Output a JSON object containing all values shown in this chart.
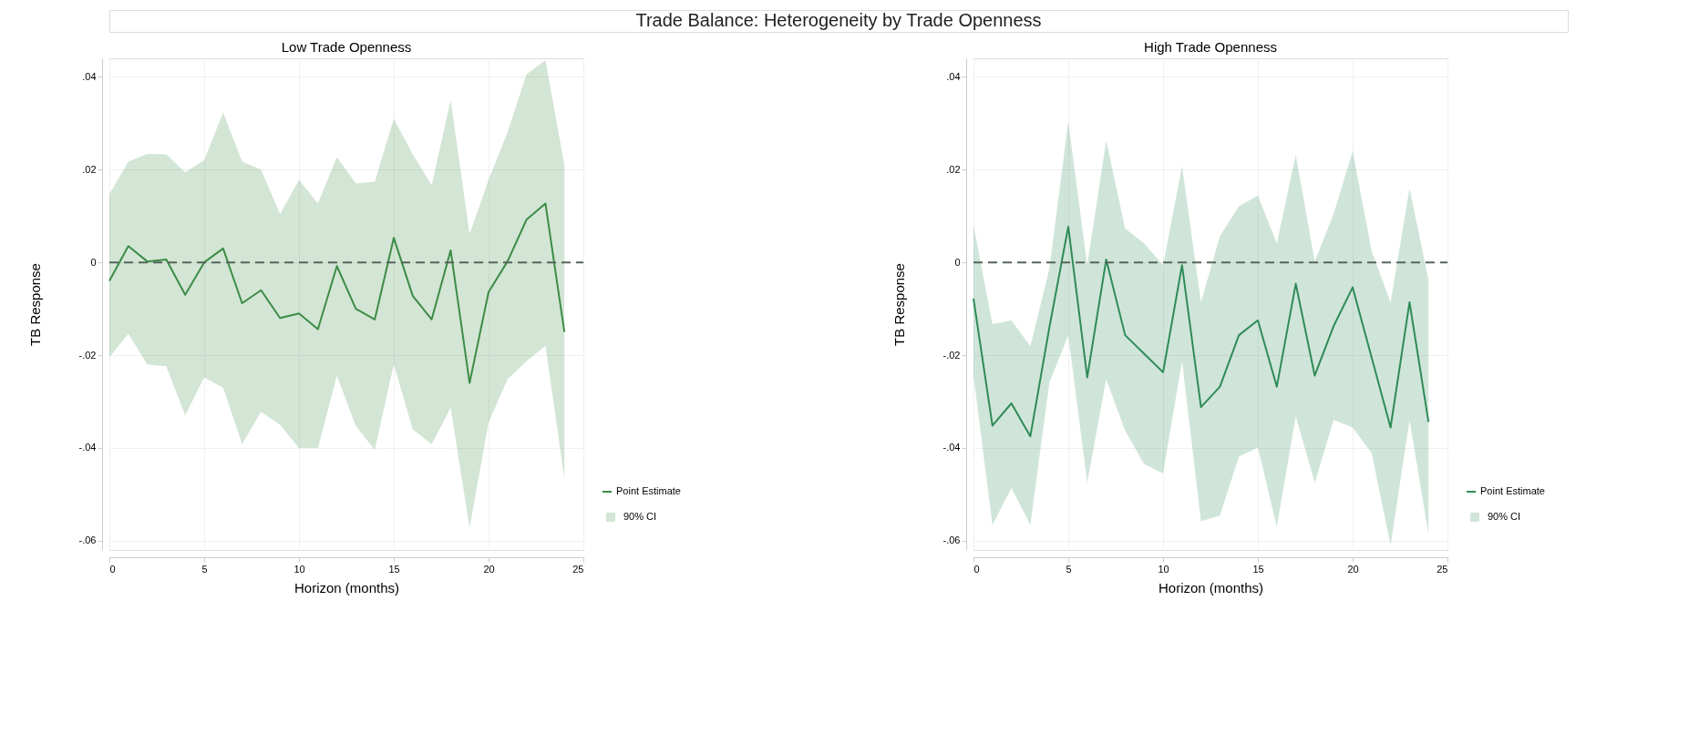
{
  "chart_data": [
    {
      "type": "other",
      "title": "Trade Balance: Heterogeneity by Trade Openness"
    },
    {
      "type": "line",
      "title": "Low Trade Openness",
      "xlabel": "Horizon (months)",
      "ylabel": "TB Response",
      "annotations": [
        "90% CI"
      ],
      "x": [
        0,
        1,
        2,
        3,
        4,
        5,
        6,
        7,
        8,
        9,
        10,
        11,
        12,
        13,
        14,
        15,
        16,
        17,
        18,
        19,
        20,
        21,
        22,
        23,
        24
      ],
      "series": [
        {
          "name": "Point Estimate",
          "color": "#3c8c46",
          "values": [
            -0.004,
            0.0035,
            0.0002,
            0.0006,
            -0.007,
            0,
            0.003,
            -0.0088,
            -0.006,
            -0.012,
            -0.011,
            -0.0144,
            -0.0008,
            -0.01,
            -0.0123,
            0.0053,
            -0.0072,
            -0.0123,
            0.0026,
            -0.026,
            -0.0064,
            0.0002,
            0.0092,
            0.0127,
            -0.015
          ],
          "upper": [
            0.0147,
            0.0217,
            0.0234,
            0.0233,
            0.0194,
            0.022,
            0.0323,
            0.0217,
            0.02,
            0.0104,
            0.0178,
            0.0127,
            0.0227,
            0.017,
            0.0174,
            0.031,
            0.0233,
            0.0166,
            0.035,
            0.0061,
            0.0178,
            0.028,
            0.0405,
            0.0436,
            0.021
          ],
          "lower": [
            -0.0205,
            -0.0154,
            -0.022,
            -0.0224,
            -0.033,
            -0.0248,
            -0.027,
            -0.0392,
            -0.0322,
            -0.035,
            -0.04,
            -0.04,
            -0.0244,
            -0.0353,
            -0.0404,
            -0.022,
            -0.036,
            -0.0392,
            -0.0314,
            -0.0572,
            -0.0345,
            -0.0252,
            -0.0213,
            -0.018,
            -0.0466
          ]
        }
      ],
      "xlim": [
        0,
        25
      ],
      "xticks": [
        0,
        5,
        10,
        15,
        20,
        25
      ],
      "ylim": [
        -0.062,
        0.044
      ],
      "yticks": [
        {
          "value": -0.06,
          "label": "-.06"
        },
        {
          "value": -0.04,
          "label": "-.04"
        },
        {
          "value": -0.02,
          "label": "-.02"
        },
        0,
        {
          "value": 0.02,
          "label": ".02"
        },
        {
          "value": 0.04,
          "label": ".04"
        }
      ],
      "ref_lines": [
        {
          "axis": "y",
          "value": 0,
          "color": "#55665a",
          "line_style": "dashed"
        }
      ],
      "grid": true,
      "legend": "bottom right",
      "line_style": "solid"
    },
    {
      "type": "line",
      "title": "High Trade Openness",
      "xlabel": "Horizon (months)",
      "ylabel": "TB Response",
      "annotations": [
        "90% CI"
      ],
      "x": [
        0,
        1,
        2,
        3,
        4,
        5,
        6,
        7,
        8,
        9,
        10,
        11,
        12,
        13,
        14,
        15,
        16,
        17,
        18,
        19,
        20,
        21,
        22,
        23,
        24
      ],
      "series": [
        {
          "name": "Point Estimate",
          "color": "#2e8b57",
          "values": [
            -0.0078,
            -0.0352,
            -0.0304,
            -0.0375,
            -0.0141,
            0.0077,
            -0.0248,
            0.0006,
            -0.0157,
            -0.0197,
            -0.0237,
            -0.0006,
            -0.0312,
            -0.0268,
            -0.0157,
            -0.0125,
            -0.0268,
            -0.0046,
            -0.0244,
            -0.0137,
            -0.0054,
            -0.0205,
            -0.0356,
            -0.0086,
            -0.0344
          ],
          "upper": [
            0.0081,
            -0.0133,
            -0.0125,
            -0.0181,
            -0.0014,
            0.0303,
            -0.0006,
            0.0263,
            0.0073,
            0.0041,
            -0.0006,
            0.0208,
            -0.0086,
            0.0057,
            0.0121,
            0.0144,
            0.0041,
            0.0232,
            0.0002,
            0.0105,
            0.024,
            0.0025,
            -0.0086,
            0.016,
            -0.0038
          ],
          "lower": [
            -0.0244,
            -0.0566,
            -0.0486,
            -0.0566,
            -0.026,
            -0.0157,
            -0.0475,
            -0.0252,
            -0.0363,
            -0.0435,
            -0.0455,
            -0.0213,
            -0.0558,
            -0.0546,
            -0.0419,
            -0.0399,
            -0.057,
            -0.0332,
            -0.0475,
            -0.034,
            -0.0356,
            -0.0411,
            -0.061,
            -0.034,
            -0.0586
          ]
        }
      ],
      "xlim": [
        0,
        25
      ],
      "xticks": [
        0,
        5,
        10,
        15,
        20,
        25
      ],
      "ylim": [
        -0.062,
        0.044
      ],
      "yticks": [
        {
          "value": -0.06,
          "label": "-.06"
        },
        {
          "value": -0.04,
          "label": "-.04"
        },
        {
          "value": -0.02,
          "label": "-.02"
        },
        0,
        {
          "value": 0.02,
          "label": ".02"
        },
        {
          "value": 0.04,
          "label": ".04"
        }
      ],
      "ref_lines": [
        {
          "axis": "y",
          "value": 0,
          "color": "#55665a",
          "line_style": "dashed"
        }
      ],
      "grid": true,
      "legend": "bottom right",
      "line_style": "solid"
    }
  ]
}
